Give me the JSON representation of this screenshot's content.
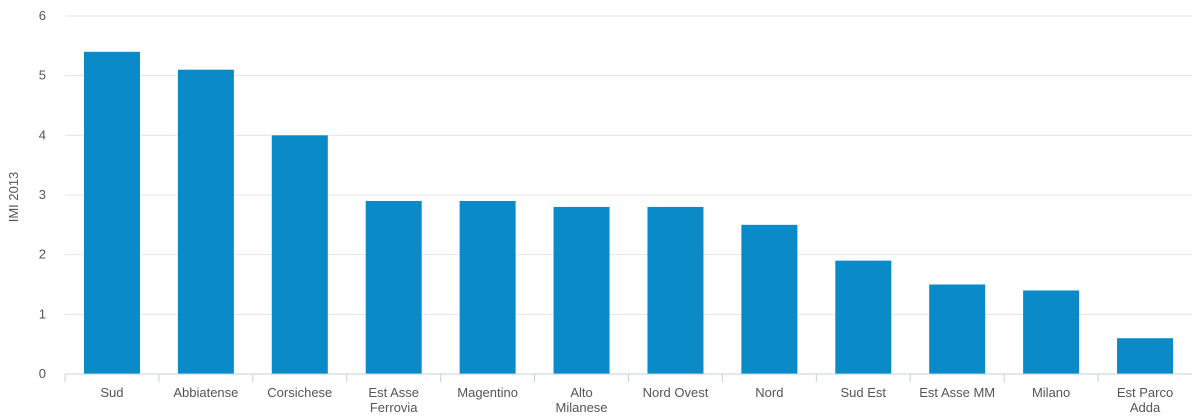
{
  "chart_data": {
    "type": "bar",
    "ylabel": "IMI 2013",
    "xlabel": "",
    "ylim": [
      0,
      6
    ],
    "yticks": [
      "0",
      "1",
      "2",
      "3",
      "4",
      "5",
      "6"
    ],
    "grid": true,
    "bar_color": "#0a8ac6",
    "grid_color": "#e4e4e4",
    "categories": [
      [
        "Sud"
      ],
      [
        "Abbiatense"
      ],
      [
        "Corsichese"
      ],
      [
        "Est Asse",
        "Ferrovia"
      ],
      [
        "Magentino"
      ],
      [
        "Alto",
        "Milanese"
      ],
      [
        "Nord Ovest"
      ],
      [
        "Nord"
      ],
      [
        "Sud Est"
      ],
      [
        "Est Asse MM"
      ],
      [
        "Milano"
      ],
      [
        "Est Parco",
        "Adda"
      ]
    ],
    "values": [
      5.4,
      5.1,
      4.0,
      2.9,
      2.9,
      2.8,
      2.8,
      2.5,
      1.9,
      1.5,
      1.4,
      0.6
    ]
  }
}
